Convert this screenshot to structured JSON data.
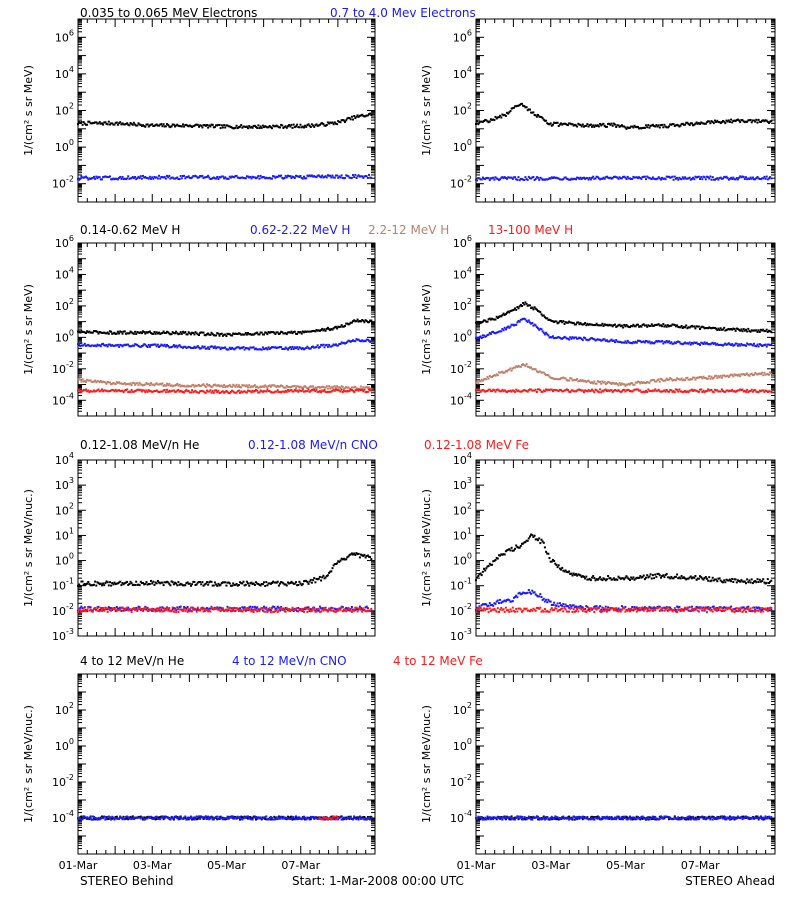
{
  "footer": {
    "left": "STEREO Behind",
    "center": "Start:  1-Mar-2008 00:00 UTC",
    "right": "STEREO Ahead"
  },
  "x_tick_labels": [
    "01-Mar",
    "03-Mar",
    "05-Mar",
    "07-Mar"
  ],
  "colors": {
    "black": "#000000",
    "blue": "#1a1aff",
    "tan": "#c0806a",
    "red": "#ff1a1a"
  },
  "chart_data": [
    {
      "type": "scatter",
      "row_title_items": [
        {
          "text": "0.035 to 0.065 MeV Electrons",
          "color": "#000000"
        },
        {
          "text": "0.7 to 4.0 Mev Electrons",
          "color": "#1a1aff"
        }
      ],
      "ylabel": "1/(cm² s sr MeV)",
      "yscale": "log",
      "ylim": [
        0.001,
        10000000
      ],
      "ytick_exponents": [
        -2,
        0,
        2,
        4,
        6
      ],
      "panels": [
        {
          "spacecraft": "STEREO Behind",
          "series": [
            {
              "color": "#000000",
              "x_days": [
                0,
                1,
                2,
                3,
                4,
                5,
                6,
                6.5,
                7,
                7.5,
                7.9
              ],
              "values": [
                20,
                20,
                15,
                15,
                13,
                13,
                14,
                16,
                22,
                45,
                60
              ]
            },
            {
              "color": "#1a1aff",
              "x_days": [
                0,
                2,
                4,
                6,
                7.9
              ],
              "values": [
                0.02,
                0.022,
                0.022,
                0.023,
                0.025
              ]
            }
          ]
        },
        {
          "spacecraft": "STEREO Ahead",
          "series": [
            {
              "color": "#000000",
              "x_days": [
                0,
                0.4,
                0.8,
                1.0,
                1.2,
                1.5,
                2.0,
                3.0,
                3.7,
                4.0,
                5.0,
                6.0,
                7.0,
                7.9
              ],
              "values": [
                20,
                30,
                60,
                150,
                250,
                80,
                18,
                15,
                16,
                12,
                14,
                20,
                28,
                25
              ]
            },
            {
              "color": "#1a1aff",
              "x_days": [
                0,
                2,
                4,
                6,
                7.9
              ],
              "values": [
                0.018,
                0.02,
                0.02,
                0.02,
                0.021
              ]
            }
          ]
        }
      ]
    },
    {
      "type": "scatter",
      "row_title_items": [
        {
          "text": "0.14-0.62 MeV H",
          "color": "#000000"
        },
        {
          "text": "0.62-2.22 MeV H",
          "color": "#1a1aff"
        },
        {
          "text": "2.2-12 MeV H",
          "color": "#c0806a"
        },
        {
          "text": "13-100 MeV H",
          "color": "#ff1a1a"
        }
      ],
      "ylabel": "1/(cm² s sr MeV)",
      "yscale": "log",
      "ylim": [
        1e-05,
        1000000
      ],
      "ytick_exponents": [
        -4,
        -2,
        0,
        2,
        4,
        6
      ],
      "panels": [
        {
          "spacecraft": "STEREO Behind",
          "series": [
            {
              "color": "#000000",
              "x_days": [
                0,
                1,
                2,
                3,
                4,
                5,
                6,
                7,
                7.5,
                7.9
              ],
              "values": [
                2.2,
                2.0,
                2.0,
                1.8,
                1.5,
                1.8,
                2.0,
                4.0,
                12,
                10
              ]
            },
            {
              "color": "#1a1aff",
              "x_days": [
                0,
                1,
                2,
                3,
                4,
                5,
                6,
                7,
                7.5,
                7.9
              ],
              "values": [
                0.35,
                0.3,
                0.3,
                0.25,
                0.2,
                0.2,
                0.2,
                0.35,
                0.7,
                0.6
              ]
            },
            {
              "color": "#c0806a",
              "x_days": [
                0,
                1,
                2,
                4,
                6,
                7.9
              ],
              "values": [
                0.002,
                0.0012,
                0.001,
                0.0008,
                0.0007,
                0.0006
              ]
            },
            {
              "color": "#ff1a1a",
              "x_days": [
                0,
                2,
                4,
                6,
                7.9
              ],
              "values": [
                0.0004,
                0.0004,
                0.00035,
                0.0004,
                0.0004
              ]
            }
          ]
        },
        {
          "spacecraft": "STEREO Ahead",
          "series": [
            {
              "color": "#000000",
              "x_days": [
                0,
                0.5,
                1.0,
                1.3,
                1.6,
                2.0,
                3.0,
                4.0,
                5.0,
                6.0,
                7.0,
                7.9
              ],
              "values": [
                8,
                15,
                50,
                150,
                60,
                10,
                7,
                5,
                6,
                4,
                3,
                2.5
              ]
            },
            {
              "color": "#1a1aff",
              "x_days": [
                0,
                0.5,
                1.0,
                1.3,
                1.6,
                2.0,
                3.0,
                4.0,
                5.0,
                6.0,
                7.0,
                7.9
              ],
              "values": [
                0.8,
                2,
                6,
                15,
                5,
                1,
                0.8,
                0.5,
                0.5,
                0.4,
                0.35,
                0.3
              ]
            },
            {
              "color": "#c0806a",
              "x_days": [
                0,
                0.5,
                1.0,
                1.3,
                1.6,
                2.0,
                3.0,
                4.0,
                5.0,
                6.0,
                7.0,
                7.9
              ],
              "values": [
                0.0012,
                0.004,
                0.01,
                0.02,
                0.008,
                0.003,
                0.0015,
                0.001,
                0.002,
                0.0025,
                0.004,
                0.005
              ]
            },
            {
              "color": "#ff1a1a",
              "x_days": [
                0,
                2,
                4,
                6,
                7.9
              ],
              "values": [
                0.0004,
                0.0004,
                0.0004,
                0.0004,
                0.0004
              ]
            }
          ]
        }
      ]
    },
    {
      "type": "scatter",
      "row_title_items": [
        {
          "text": "0.12-1.08 MeV/n He",
          "color": "#000000"
        },
        {
          "text": "0.12-1.08 MeV/n CNO",
          "color": "#1a1aff"
        },
        {
          "text": "0.12-1.08 MeV Fe",
          "color": "#ff1a1a"
        }
      ],
      "ylabel": "1/(cm² s sr MeV/nuc.)",
      "yscale": "log",
      "ylim": [
        0.001,
        10000
      ],
      "ytick_exponents": [
        -3,
        -2,
        -1,
        0,
        1,
        2,
        3,
        4
      ],
      "panels": [
        {
          "spacecraft": "STEREO Behind",
          "series": [
            {
              "color": "#000000",
              "x_days": [
                0,
                1,
                2,
                3,
                4,
                5,
                6,
                6.6,
                7.0,
                7.4,
                7.9
              ],
              "values": [
                0.12,
                0.12,
                0.13,
                0.12,
                0.12,
                0.12,
                0.12,
                0.2,
                0.8,
                1.8,
                1.2
              ]
            },
            {
              "color": "#1a1aff",
              "x_days": [
                0,
                2,
                4,
                6,
                7.9
              ],
              "values": [
                0.012,
                0.012,
                0.012,
                0.012,
                0.012
              ]
            },
            {
              "color": "#ff1a1a",
              "x_days": [
                0,
                2,
                4,
                6,
                7.9
              ],
              "values": [
                0.011,
                0.011,
                0.011,
                0.011,
                0.011
              ]
            }
          ]
        },
        {
          "spacecraft": "STEREO Ahead",
          "series": [
            {
              "color": "#000000",
              "x_days": [
                0,
                0.3,
                0.6,
                1.0,
                1.3,
                1.5,
                1.8,
                2.0,
                2.5,
                3.0,
                4.0,
                5.0,
                6.0,
                7.0,
                7.9
              ],
              "values": [
                0.2,
                0.5,
                1.5,
                3,
                5,
                10,
                5,
                1,
                0.3,
                0.2,
                0.2,
                0.25,
                0.2,
                0.15,
                0.15
              ]
            },
            {
              "color": "#1a1aff",
              "x_days": [
                0,
                1.0,
                1.3,
                1.6,
                2.0,
                3.0,
                5.0,
                7.9
              ],
              "values": [
                0.013,
                0.03,
                0.06,
                0.05,
                0.02,
                0.013,
                0.012,
                0.012
              ]
            },
            {
              "color": "#ff1a1a",
              "x_days": [
                0,
                2,
                4,
                6,
                7.9
              ],
              "values": [
                0.011,
                0.011,
                0.011,
                0.011,
                0.011
              ]
            }
          ]
        }
      ]
    },
    {
      "type": "scatter",
      "row_title_items": [
        {
          "text": "4 to 12 MeV/n He",
          "color": "#000000"
        },
        {
          "text": "4 to 12 MeV/n CNO",
          "color": "#1a1aff"
        },
        {
          "text": "4 to 12 MeV Fe",
          "color": "#ff1a1a"
        }
      ],
      "ylabel": "1/(cm² s sr MeV/nuc.)",
      "yscale": "log",
      "ylim": [
        1e-06,
        10000
      ],
      "ytick_exponents": [
        -4,
        -2,
        0,
        2
      ],
      "panels": [
        {
          "spacecraft": "STEREO Behind",
          "series": [
            {
              "color": "#000000",
              "x_days": [
                0,
                2,
                4,
                6,
                7.9
              ],
              "values": [
                0.0001,
                0.0001,
                0.0001,
                0.0001,
                0.0001
              ]
            },
            {
              "color": "#1a1aff",
              "x_days": [
                0,
                2,
                4,
                6,
                7.9
              ],
              "values": [
                0.0001,
                0.0001,
                0.0001,
                0.0001,
                0.0001
              ]
            },
            {
              "color": "#ff1a1a",
              "x_days": [
                6.5,
                7.0
              ],
              "values": [
                0.0001,
                0.0001
              ]
            }
          ]
        },
        {
          "spacecraft": "STEREO Ahead",
          "series": [
            {
              "color": "#000000",
              "x_days": [
                0,
                2,
                4,
                6,
                7.9
              ],
              "values": [
                0.0001,
                0.0001,
                0.0001,
                0.0001,
                0.0001
              ]
            },
            {
              "color": "#1a1aff",
              "x_days": [
                0,
                2,
                4,
                6,
                7.9
              ],
              "values": [
                0.0001,
                0.0001,
                0.0001,
                0.0001,
                0.0001
              ]
            },
            {
              "color": "#ff1a1a",
              "x_days": [],
              "values": []
            }
          ]
        }
      ]
    }
  ]
}
